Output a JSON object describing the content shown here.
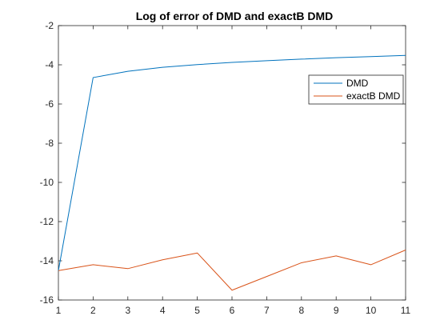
{
  "chart_data": {
    "type": "line",
    "title": "Log of error of DMD and exactB DMD",
    "xlabel": "",
    "ylabel": "",
    "xlim": [
      1,
      11
    ],
    "ylim": [
      -16,
      -2
    ],
    "xticks": [
      1,
      2,
      3,
      4,
      5,
      6,
      7,
      8,
      9,
      10,
      11
    ],
    "yticks": [
      -16,
      -14,
      -12,
      -10,
      -8,
      -6,
      -4,
      -2
    ],
    "grid": false,
    "legend_position": "top-right",
    "x": [
      1,
      2,
      3,
      4,
      5,
      6,
      7,
      8,
      9,
      10,
      11
    ],
    "series": [
      {
        "name": "DMD",
        "color": "#0072BD",
        "values": [
          -14.5,
          -4.65,
          -4.33,
          -4.13,
          -3.99,
          -3.88,
          -3.79,
          -3.71,
          -3.64,
          -3.58,
          -3.52
        ]
      },
      {
        "name": "exactB DMD",
        "color": "#D95319",
        "values": [
          -14.5,
          -14.2,
          -14.4,
          -13.95,
          -13.6,
          -15.5,
          -14.8,
          -14.1,
          -13.75,
          -14.2,
          -13.45
        ]
      }
    ]
  }
}
